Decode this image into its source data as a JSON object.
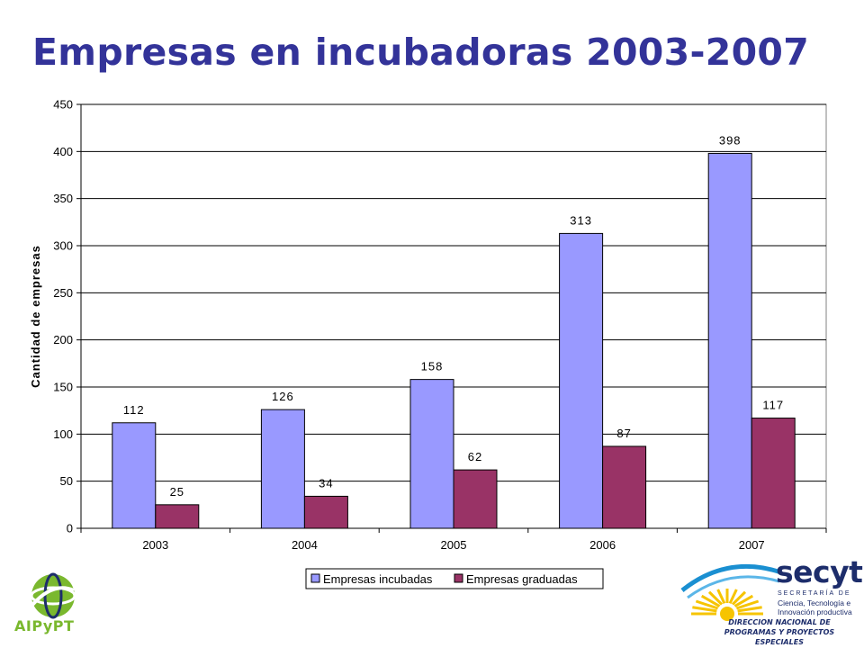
{
  "slide": {
    "title": "Empresas en incubadoras 2003-2007"
  },
  "colors": {
    "title": "#333399",
    "incubadas": "#9999FF",
    "graduadas": "#993366"
  },
  "chart_data": {
    "type": "bar",
    "title": "",
    "xlabel": "",
    "ylabel": "Cantidad de empresas",
    "categories": [
      "2003",
      "2004",
      "2005",
      "2006",
      "2007"
    ],
    "series": [
      {
        "name": "Empresas incubadas",
        "values": [
          112,
          126,
          158,
          313,
          398
        ]
      },
      {
        "name": "Empresas graduadas",
        "values": [
          25,
          34,
          62,
          87,
          117
        ]
      }
    ],
    "ylim": [
      0,
      450
    ],
    "yticks": [
      0,
      50,
      100,
      150,
      200,
      250,
      300,
      350,
      400,
      450
    ],
    "grid": true,
    "legend": "bottom-center",
    "data_labels": true
  },
  "logos": {
    "left": {
      "name": "AIPyPT",
      "icon": "aipypt-globe-icon"
    },
    "right": {
      "name": "secyt",
      "subtitle": "SECRETARÍA DE",
      "desc_lines": [
        "Ciencia, Tecnología e",
        "Innovación productiva"
      ],
      "direccion_lines": [
        "DIRECCION NACIONAL DE",
        "PROGRAMAS Y PROYECTOS ESPECIALES"
      ],
      "icon": "sun-rays-icon"
    }
  }
}
